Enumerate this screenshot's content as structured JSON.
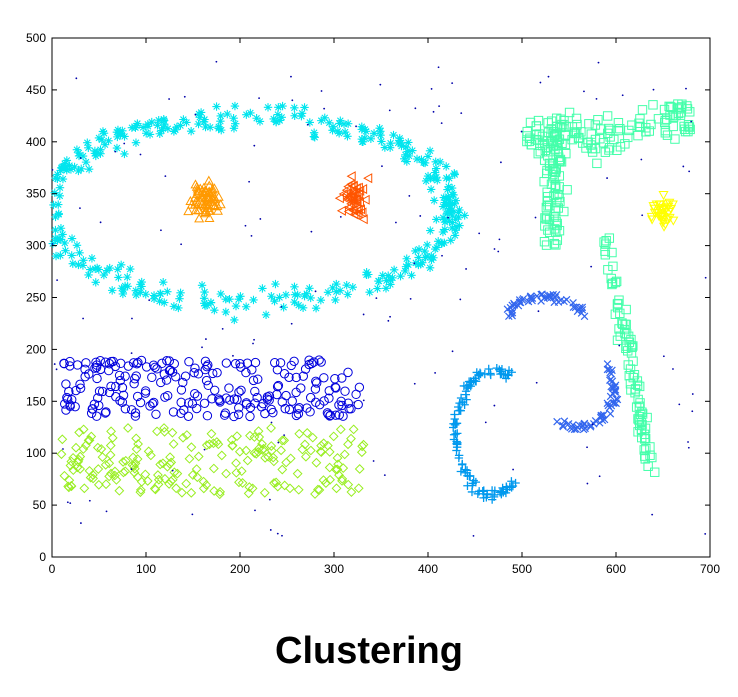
{
  "caption": "Clustering",
  "chart_data": {
    "type": "scatter",
    "title": "",
    "xlabel": "",
    "ylabel": "",
    "xlim": [
      0,
      700
    ],
    "ylim": [
      0,
      500
    ],
    "x_ticks": [
      0,
      100,
      200,
      300,
      400,
      500,
      600,
      700
    ],
    "y_ticks": [
      0,
      50,
      100,
      150,
      200,
      250,
      300,
      350,
      400,
      450,
      500
    ],
    "grid": false,
    "legend": "none",
    "clusters": [
      {
        "marker": "star",
        "color": "#00e5ee",
        "shape": "ellipse-ring",
        "center": [
          210,
          335
        ],
        "radii": [
          215,
          90
        ],
        "width": 22,
        "count": 420
      },
      {
        "marker": "triangle-up",
        "color": "#ff9900",
        "shape": "blob",
        "center": [
          162,
          347
        ],
        "radii": [
          22,
          28
        ],
        "count": 70
      },
      {
        "marker": "triangle-left",
        "color": "#ff5500",
        "shape": "blob",
        "center": [
          320,
          345
        ],
        "radii": [
          18,
          27
        ],
        "count": 50
      },
      {
        "marker": "circle",
        "color": "#0000dd",
        "shape": "band",
        "x": [
          10,
          330
        ],
        "y": [
          135,
          190
        ],
        "count": 230
      },
      {
        "marker": "diamond",
        "color": "#99ee22",
        "shape": "band",
        "x": [
          10,
          335
        ],
        "y": [
          60,
          125
        ],
        "count": 210
      },
      {
        "marker": "plus",
        "color": "#0099ee",
        "shape": "c-curve",
        "center": [
          470,
          120
        ],
        "count": 110
      },
      {
        "marker": "x",
        "color": "#3366ee",
        "shape": "s-curve",
        "center": [
          545,
          190
        ],
        "count": 110
      },
      {
        "marker": "square",
        "color": "#44ffaa",
        "shape": "p-shape",
        "count": 300
      },
      {
        "marker": "triangle-down",
        "color": "#ffff00",
        "shape": "blob",
        "center": [
          650,
          335
        ],
        "radii": [
          20,
          25
        ],
        "count": 35
      },
      {
        "marker": "dot",
        "color": "#0000aa",
        "shape": "noise",
        "x": [
          0,
          700
        ],
        "y": [
          20,
          480
        ],
        "count": 140
      }
    ]
  }
}
